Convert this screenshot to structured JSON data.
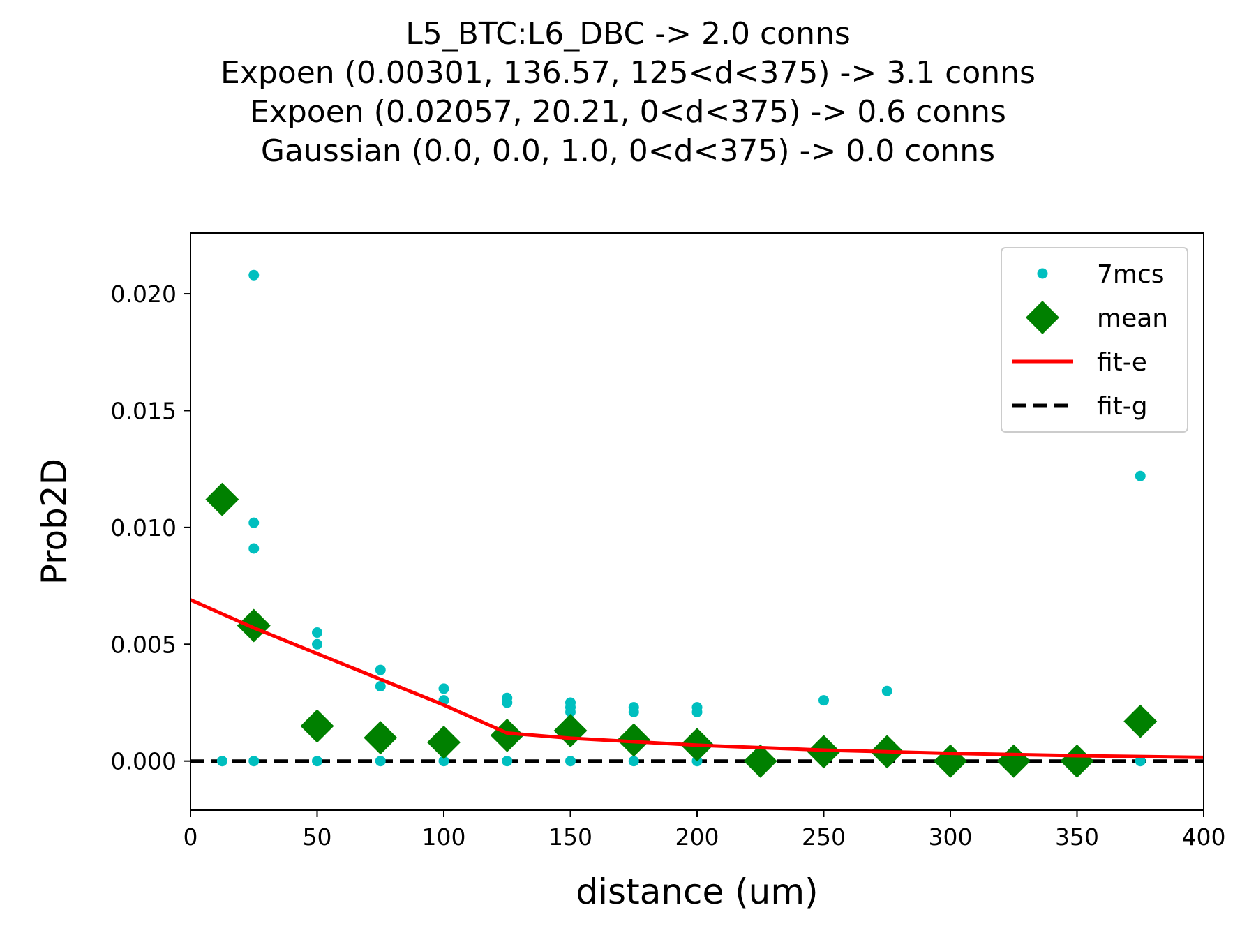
{
  "chart_data": {
    "type": "scatter",
    "title_lines": [
      "L5_BTC:L6_DBC -> 2.0 conns",
      "Expoen (0.00301, 136.57, 125<d<375) -> 3.1 conns",
      "Expoen (0.02057, 20.21, 0<d<375) -> 0.6 conns",
      "Gaussian (0.0, 0.0, 1.0, 0<d<375) -> 0.0 conns"
    ],
    "xlabel": "distance (um)",
    "ylabel": "Prob2D",
    "xlim": [
      0,
      400
    ],
    "ylim": [
      -0.0021,
      0.0226
    ],
    "xticks": [
      0,
      50,
      100,
      150,
      200,
      250,
      300,
      350,
      400
    ],
    "yticks": [
      0.0,
      0.005,
      0.01,
      0.015,
      0.02
    ],
    "ytick_labels": [
      "0.000",
      "0.005",
      "0.010",
      "0.015",
      "0.020"
    ],
    "grid": false,
    "legend_position": "top-right",
    "colors": {
      "points": "#00bfbf",
      "mean": "#008000",
      "fit_e": "#ff0000",
      "fit_g": "#000000"
    },
    "series": [
      {
        "name": "7mcs",
        "kind": "points",
        "x": [
          12.5,
          25,
          25,
          25,
          25,
          50,
          50,
          50,
          75,
          75,
          75,
          100,
          100,
          100,
          125,
          125,
          125,
          150,
          150,
          150,
          150,
          175,
          175,
          175,
          200,
          200,
          200,
          250,
          275,
          375,
          375
        ],
        "y": [
          0.0,
          0.0208,
          0.0102,
          0.0091,
          0.0,
          0.0055,
          0.005,
          0.0,
          0.0039,
          0.0032,
          0.0,
          0.0031,
          0.0026,
          0.0,
          0.0027,
          0.0025,
          0.0,
          0.0025,
          0.0023,
          0.0021,
          0.0,
          0.0023,
          0.0021,
          0.0,
          0.0023,
          0.0021,
          0.0,
          0.0026,
          0.003,
          0.0122,
          0.0
        ]
      },
      {
        "name": "mean",
        "kind": "mean",
        "x": [
          12.5,
          25,
          50,
          75,
          100,
          125,
          150,
          175,
          200,
          225,
          250,
          275,
          300,
          325,
          350,
          375
        ],
        "y": [
          0.0112,
          0.0058,
          0.0015,
          0.001,
          0.0008,
          0.0011,
          0.0013,
          0.0009,
          0.0007,
          0.0,
          0.0004,
          0.0004,
          0.0,
          0.0,
          0.0,
          0.0017
        ]
      },
      {
        "name": "fit-e",
        "kind": "line",
        "x": [
          0,
          25,
          50,
          75,
          100,
          125,
          150,
          200,
          250,
          300,
          350,
          400
        ],
        "y": [
          0.0069,
          0.0057,
          0.0046,
          0.0035,
          0.0024,
          0.0012,
          0.00098,
          0.00068,
          0.00047,
          0.00033,
          0.00023,
          0.00016
        ]
      },
      {
        "name": "fit-g",
        "kind": "dashed",
        "x": [
          0,
          400
        ],
        "y": [
          0.0,
          0.0
        ]
      }
    ]
  }
}
